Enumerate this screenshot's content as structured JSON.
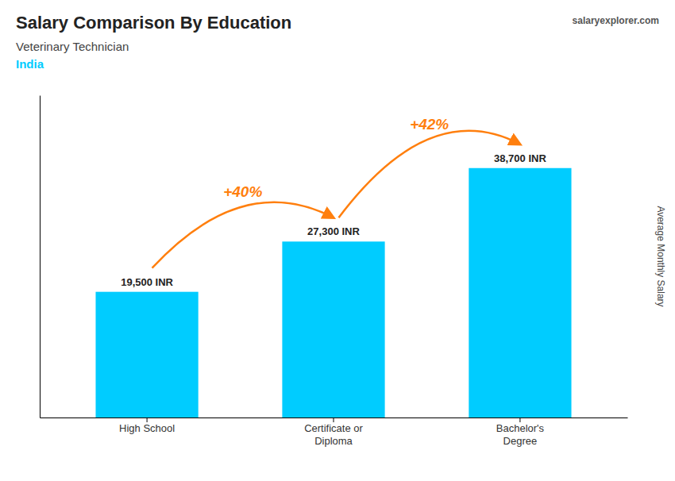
{
  "chart_data": {
    "type": "bar",
    "title": "Salary Comparison By Education",
    "subtitle": [
      "Veterinary Technician",
      "India"
    ],
    "ylabel": "Average Monthly Salary",
    "categories": [
      "High School",
      "Certificate or\nDiploma",
      "Bachelor's\nDegree"
    ],
    "values": [
      19500,
      27300,
      38700
    ],
    "value_labels": [
      "19,500 INR",
      "27,300 INR",
      "38,700 INR"
    ],
    "data_labels": true,
    "color": "#00ccff",
    "ylim": [
      0,
      50000
    ],
    "tick_labels": "x",
    "annotations": [
      "+40%",
      "+42%",
      "salaryexplorer.com"
    ]
  }
}
